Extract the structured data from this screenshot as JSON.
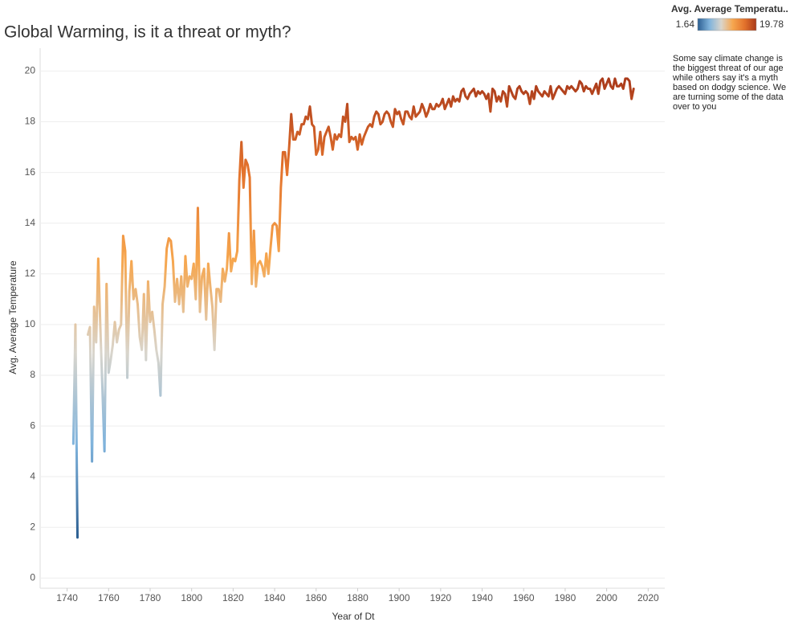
{
  "chart_data": {
    "type": "line",
    "title": "Global Warming, is it a threat or myth?",
    "x_label": "Year of Dt",
    "y_label": "Avg. Average Temperature",
    "annotation": "Some say climate change is the biggest threat of our age while others say it's a myth based on dodgy science. We are turning some of the data over to you",
    "color_scale": {
      "title": "Avg. Average Temperatu..",
      "min": 1.64,
      "max": 19.78,
      "colors": [
        "#2c5f92",
        "#7fb3dc",
        "#d9d5cc",
        "#f6a64e",
        "#e3722c",
        "#a9391a"
      ]
    },
    "xlim": [
      1727,
      2028
    ],
    "ylim": [
      -0.4,
      20.9
    ],
    "xticks": [
      1740,
      1760,
      1780,
      1800,
      1820,
      1840,
      1860,
      1880,
      1900,
      1920,
      1940,
      1960,
      1980,
      2000,
      2020
    ],
    "yticks": [
      0,
      2,
      4,
      6,
      8,
      10,
      12,
      14,
      16,
      18,
      20
    ],
    "grid": true,
    "x": [
      1743,
      1744,
      1745,
      1746,
      1747,
      1748,
      1749,
      1750,
      1751,
      1752,
      1753,
      1754,
      1755,
      1756,
      1757,
      1758,
      1759,
      1760,
      1761,
      1762,
      1763,
      1764,
      1765,
      1766,
      1767,
      1768,
      1769,
      1770,
      1771,
      1772,
      1773,
      1774,
      1775,
      1776,
      1777,
      1778,
      1779,
      1780,
      1781,
      1782,
      1783,
      1784,
      1785,
      1786,
      1787,
      1788,
      1789,
      1790,
      1791,
      1792,
      1793,
      1794,
      1795,
      1796,
      1797,
      1798,
      1799,
      1800,
      1801,
      1802,
      1803,
      1804,
      1805,
      1806,
      1807,
      1808,
      1809,
      1810,
      1811,
      1812,
      1813,
      1814,
      1815,
      1816,
      1817,
      1818,
      1819,
      1820,
      1821,
      1822,
      1823,
      1824,
      1825,
      1826,
      1827,
      1828,
      1829,
      1830,
      1831,
      1832,
      1833,
      1834,
      1835,
      1836,
      1837,
      1838,
      1839,
      1840,
      1841,
      1842,
      1843,
      1844,
      1845,
      1846,
      1847,
      1848,
      1849,
      1850,
      1851,
      1852,
      1853,
      1854,
      1855,
      1856,
      1857,
      1858,
      1859,
      1860,
      1861,
      1862,
      1863,
      1864,
      1865,
      1866,
      1867,
      1868,
      1869,
      1870,
      1871,
      1872,
      1873,
      1874,
      1875,
      1876,
      1877,
      1878,
      1879,
      1880,
      1881,
      1882,
      1883,
      1884,
      1885,
      1886,
      1887,
      1888,
      1889,
      1890,
      1891,
      1892,
      1893,
      1894,
      1895,
      1896,
      1897,
      1898,
      1899,
      1900,
      1901,
      1902,
      1903,
      1904,
      1905,
      1906,
      1907,
      1908,
      1909,
      1910,
      1911,
      1912,
      1913,
      1914,
      1915,
      1916,
      1917,
      1918,
      1919,
      1920,
      1921,
      1922,
      1923,
      1924,
      1925,
      1926,
      1927,
      1928,
      1929,
      1930,
      1931,
      1932,
      1933,
      1934,
      1935,
      1936,
      1937,
      1938,
      1939,
      1940,
      1941,
      1942,
      1943,
      1944,
      1945,
      1946,
      1947,
      1948,
      1949,
      1950,
      1951,
      1952,
      1953,
      1954,
      1955,
      1956,
      1957,
      1958,
      1959,
      1960,
      1961,
      1962,
      1963,
      1964,
      1965,
      1966,
      1967,
      1968,
      1969,
      1970,
      1971,
      1972,
      1973,
      1974,
      1975,
      1976,
      1977,
      1978,
      1979,
      1980,
      1981,
      1982,
      1983,
      1984,
      1985,
      1986,
      1987,
      1988,
      1989,
      1990,
      1991,
      1992,
      1993,
      1994,
      1995,
      1996,
      1997,
      1998,
      1999,
      2000,
      2001,
      2002,
      2003,
      2004,
      2005,
      2006,
      2007,
      2008,
      2009,
      2010,
      2011,
      2012,
      2013
    ],
    "values": [
      5.3,
      10.0,
      1.6,
      null,
      null,
      null,
      null,
      9.6,
      9.9,
      4.6,
      10.7,
      9.3,
      12.6,
      9.9,
      7.5,
      5.0,
      11.6,
      8.1,
      8.6,
      9.2,
      10.1,
      9.3,
      9.8,
      10.0,
      13.5,
      12.9,
      7.9,
      11.3,
      12.5,
      11.0,
      11.4,
      10.8,
      9.5,
      9.0,
      11.2,
      8.6,
      11.7,
      10.1,
      10.5,
      9.8,
      9.0,
      8.5,
      7.2,
      10.8,
      11.5,
      13.0,
      13.4,
      13.3,
      12.5,
      10.9,
      11.8,
      10.8,
      11.9,
      10.5,
      12.7,
      11.5,
      11.9,
      11.8,
      12.4,
      11.0,
      14.6,
      10.5,
      11.9,
      12.2,
      10.2,
      12.4,
      11.5,
      10.7,
      9.0,
      11.4,
      11.4,
      10.9,
      12.2,
      11.7,
      12.2,
      13.6,
      12.1,
      12.6,
      12.5,
      12.9,
      15.7,
      17.2,
      15.4,
      16.5,
      16.3,
      15.8,
      11.6,
      13.7,
      11.5,
      12.4,
      12.5,
      12.3,
      11.9,
      12.8,
      12.0,
      13.0,
      13.9,
      14.0,
      13.9,
      12.9,
      15.4,
      16.8,
      16.8,
      15.9,
      17.0,
      18.3,
      17.3,
      17.3,
      17.6,
      17.5,
      17.9,
      17.9,
      18.2,
      18.1,
      18.6,
      17.9,
      17.8,
      16.7,
      16.9,
      17.6,
      16.7,
      17.4,
      17.6,
      17.8,
      17.4,
      16.9,
      17.5,
      17.3,
      17.5,
      17.4,
      18.2,
      18.0,
      18.7,
      17.2,
      17.4,
      17.3,
      17.4,
      16.9,
      17.5,
      17.1,
      17.4,
      17.6,
      17.8,
      17.9,
      17.8,
      18.2,
      18.4,
      18.3,
      17.9,
      18.0,
      18.3,
      18.4,
      18.3,
      18.0,
      17.8,
      18.5,
      18.3,
      18.4,
      18.1,
      17.9,
      18.4,
      18.4,
      18.2,
      18.1,
      18.6,
      18.2,
      18.3,
      18.4,
      18.7,
      18.5,
      18.2,
      18.4,
      18.7,
      18.5,
      18.5,
      18.7,
      18.6,
      18.7,
      18.9,
      18.5,
      18.7,
      18.9,
      18.6,
      19.0,
      18.8,
      18.9,
      18.8,
      19.2,
      19.3,
      19.0,
      18.9,
      19.1,
      19.2,
      19.3,
      19.0,
      19.2,
      19.1,
      19.2,
      19.1,
      18.9,
      19.1,
      18.4,
      19.3,
      19.2,
      18.8,
      19.0,
      18.8,
      19.2,
      19.1,
      18.6,
      19.4,
      19.2,
      19.0,
      18.9,
      19.3,
      19.4,
      19.2,
      19.1,
      19.2,
      19.1,
      18.7,
      19.2,
      18.9,
      19.4,
      19.2,
      19.1,
      19.0,
      19.2,
      19.1,
      19.0,
      19.4,
      18.9,
      19.1,
      19.3,
      19.4,
      19.3,
      19.2,
      19.1,
      19.4,
      19.3,
      19.4,
      19.3,
      19.2,
      19.3,
      19.6,
      19.5,
      19.2,
      19.4,
      19.3,
      19.3,
      19.1,
      19.3,
      19.5,
      19.1,
      19.6,
      19.7,
      19.3,
      19.5,
      19.7,
      19.4,
      19.3,
      19.7,
      19.4,
      19.4,
      19.5,
      19.3,
      19.7,
      19.7,
      19.6,
      18.9,
      19.3
    ]
  }
}
